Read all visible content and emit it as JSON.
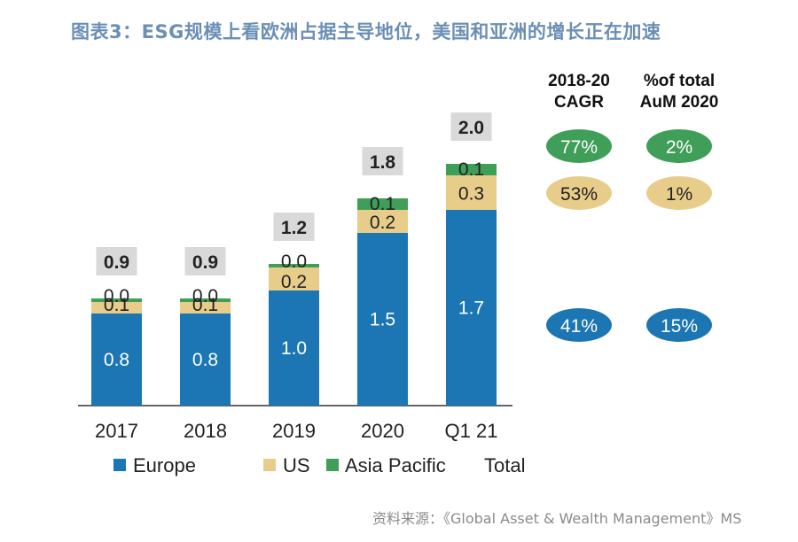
{
  "title": "图表3：ESG规模上看欧洲占据主导地位，美国和亚洲的增长正在加速",
  "source": "资料来源：《Global Asset & Wealth Management》MS",
  "colors": {
    "europe": "#1c76b3",
    "us": "#e8cc8a",
    "asia": "#3f9e57",
    "total_box": "#d9d9d9",
    "axis": "#666666"
  },
  "chart_data": {
    "type": "bar",
    "stacked": true,
    "categories": [
      "2017",
      "2018",
      "2019",
      "2020",
      "Q1 21"
    ],
    "series": [
      {
        "name": "Europe",
        "key": "europe",
        "values": [
          0.8,
          0.8,
          1.0,
          1.5,
          1.7
        ]
      },
      {
        "name": "US",
        "key": "us",
        "values": [
          0.1,
          0.1,
          0.2,
          0.2,
          0.3
        ]
      },
      {
        "name": "Asia Pacific",
        "key": "asia",
        "values": [
          0.0,
          0.0,
          0.0,
          0.1,
          0.1
        ]
      }
    ],
    "totals": [
      0.9,
      0.9,
      1.2,
      1.8,
      2.0
    ],
    "legend": [
      "Europe",
      "US",
      "Asia Pacific",
      "Total"
    ],
    "ylim": [
      0,
      2.2
    ],
    "grid": false
  },
  "table": {
    "headers": [
      [
        "2018-20",
        "CAGR"
      ],
      [
        "%of total",
        "AuM 2020"
      ]
    ],
    "rows": [
      {
        "series": "asia",
        "cagr": "77%",
        "share": "2%"
      },
      {
        "series": "us",
        "cagr": "53%",
        "share": "1%"
      },
      {
        "series": "europe",
        "cagr": "41%",
        "share": "15%"
      }
    ]
  }
}
